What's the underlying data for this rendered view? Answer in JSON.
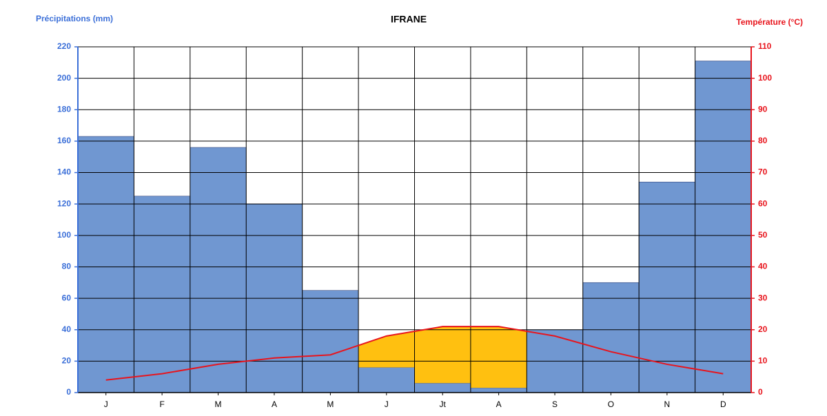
{
  "chart_data": {
    "type": "climate",
    "title": "IFRANE",
    "y_label": "Précipitations (mm)",
    "y2_label": "Température (°C)",
    "categories": [
      "J",
      "F",
      "M",
      "A",
      "M",
      "J",
      "Jt",
      "A",
      "S",
      "O",
      "N",
      "D"
    ],
    "series": [
      {
        "name": "Précipitations (mm)",
        "color": "#7097d1",
        "type": "bar",
        "values": [
          163,
          125,
          156,
          120,
          65,
          16,
          6,
          3,
          40,
          70,
          134,
          211
        ]
      },
      {
        "name": "Température (°C)",
        "color": "#e8141c",
        "type": "line",
        "axis": "y2",
        "values": [
          4,
          6,
          9,
          11,
          12,
          18,
          21,
          21,
          18,
          13,
          9,
          6
        ]
      }
    ],
    "dry_color": "#ffc010",
    "ylim": [
      0,
      220
    ],
    "yticks": [
      0,
      20,
      40,
      60,
      80,
      100,
      120,
      140,
      160,
      180,
      200,
      220
    ],
    "y2lim": [
      0,
      110
    ],
    "y2ticks": [
      0,
      10,
      20,
      30,
      40,
      50,
      60,
      70,
      80,
      90,
      100,
      110
    ],
    "grid": true
  }
}
